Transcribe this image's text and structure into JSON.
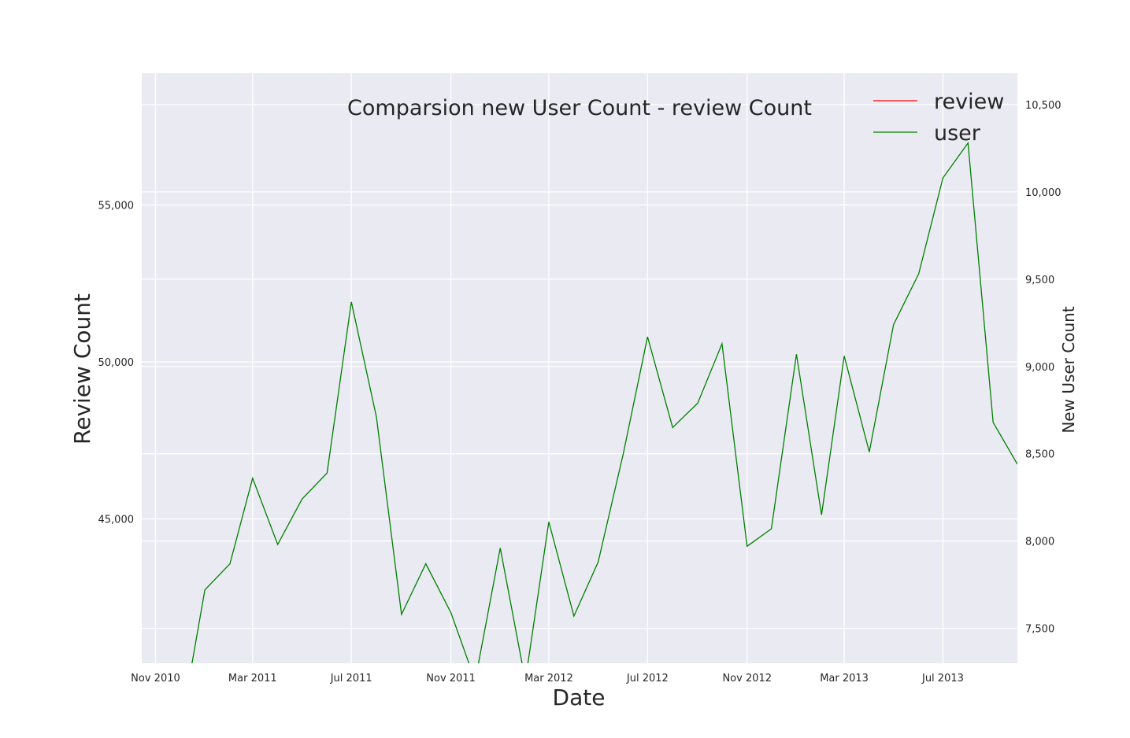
{
  "chart_data": {
    "type": "line",
    "title": "Comparsion new User Count - review Count",
    "xlabel": "Date",
    "ylabel": "Review Count",
    "y2label": "New User Count",
    "x_tick_labels": [
      "Nov 2010",
      "Mar 2011",
      "Jul 2011",
      "Nov 2011",
      "Mar 2012",
      "Jul 2012",
      "Nov 2012",
      "Mar 2013",
      "Jul 2013"
    ],
    "x_tick_dates": [
      "2010-11-01",
      "2011-03-01",
      "2011-07-01",
      "2011-11-01",
      "2012-03-01",
      "2012-07-01",
      "2012-11-01",
      "2013-03-01",
      "2013-07-01"
    ],
    "xlim": [
      "2010-10-15",
      "2013-10-01"
    ],
    "y_ticks": [
      45000,
      50000,
      55000
    ],
    "y_tick_labels": [
      "45,000",
      "50,000",
      "55,000"
    ],
    "ylim": [
      40400,
      59200
    ],
    "y2_ticks": [
      7500,
      8000,
      8500,
      9000,
      9500,
      10000,
      10500
    ],
    "y2_tick_labels": [
      "7,500",
      "8,000",
      "8,500",
      "9,000",
      "9,500",
      "10,000",
      "10,500"
    ],
    "y2lim": [
      7300,
      10680
    ],
    "grid": true,
    "legend_position": "top-right",
    "series": [
      {
        "name": "review",
        "color": "#ff0000",
        "axis": "left",
        "x": [],
        "values": []
      },
      {
        "name": "user",
        "color": "#008000",
        "axis": "right",
        "x": [
          "2010-12-01",
          "2011-01-01",
          "2011-02-01",
          "2011-03-01",
          "2011-04-01",
          "2011-05-01",
          "2011-06-01",
          "2011-07-01",
          "2011-08-01",
          "2011-09-01",
          "2011-10-01",
          "2011-11-01",
          "2011-12-01",
          "2012-01-01",
          "2012-02-01",
          "2012-03-01",
          "2012-04-01",
          "2012-05-01",
          "2012-06-01",
          "2012-07-01",
          "2012-08-01",
          "2012-09-01",
          "2012-10-01",
          "2012-11-01",
          "2012-12-01",
          "2013-01-01",
          "2013-02-01",
          "2013-03-01",
          "2013-04-01",
          "2013-05-01",
          "2013-06-01",
          "2013-07-01",
          "2013-08-01",
          "2013-09-01",
          "2013-10-01"
        ],
        "values": [
          6900,
          7720,
          7870,
          8360,
          7980,
          8240,
          8390,
          9370,
          8710,
          7580,
          7870,
          7590,
          7200,
          7960,
          7200,
          8110,
          7570,
          7880,
          8500,
          9170,
          8650,
          8790,
          9130,
          7970,
          8070,
          9070,
          8150,
          9060,
          8510,
          9240,
          9530,
          10080,
          10280,
          8680,
          8440
        ]
      }
    ]
  }
}
